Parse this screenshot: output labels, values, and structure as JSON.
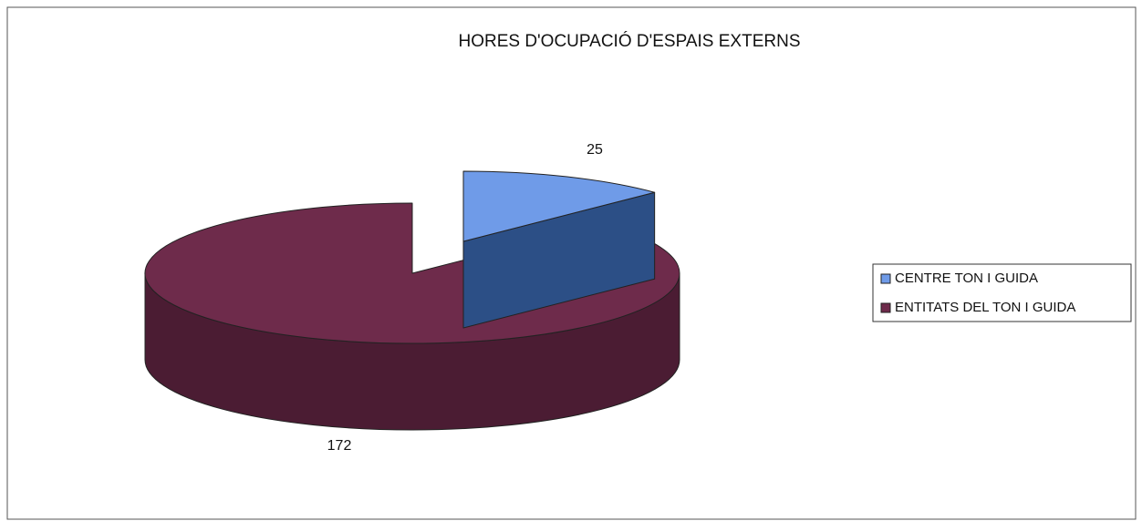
{
  "chart_data": {
    "type": "pie",
    "title": "HORES D'OCUPACIÓ D'ESPAIS EXTERNS",
    "categories": [
      "CENTRE TON I GUIDA",
      "ENTITATS DEL TON I GUIDA"
    ],
    "values": [
      25,
      172
    ],
    "colors": [
      "#6f9be8",
      "#6e2b4b"
    ],
    "side_colors": [
      "#2c4f86",
      "#4b1c33"
    ],
    "legend": "right"
  }
}
